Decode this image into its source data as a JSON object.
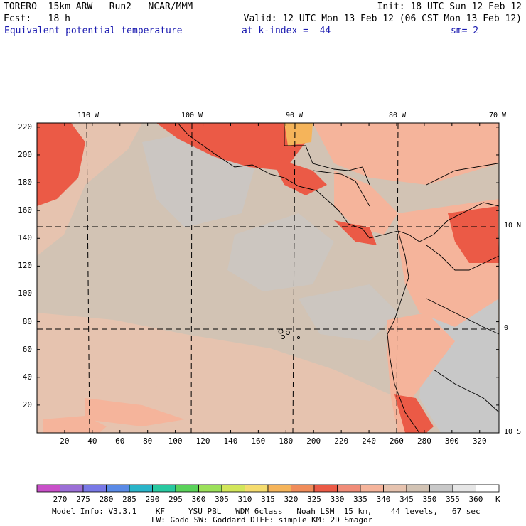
{
  "header": {
    "line1_left": "TORERO  15km ARW   Run2   NCAR/MMM",
    "line1_right": "Init: 18 UTC Sun 12 Feb 12",
    "line2_left": "Fcst:   18 h",
    "line2_right": "Valid: 12 UTC Mon 13 Feb 12 (06 CST Mon 13 Feb 12)",
    "field": "Equivalent potential temperature",
    "level": "at k-index =  44",
    "smooth": "sm= 2"
  },
  "map": {
    "lon_labels": [
      "110 W",
      "100 W",
      "90 W",
      "80 W",
      "70 W"
    ],
    "lat_labels": [
      "10 N",
      "0",
      "10 S"
    ],
    "x_ticks": [
      "20",
      "40",
      "60",
      "80",
      "100",
      "120",
      "140",
      "160",
      "180",
      "200",
      "220",
      "240",
      "260",
      "280",
      "300",
      "320"
    ],
    "y_ticks": [
      "220",
      "200",
      "180",
      "160",
      "140",
      "120",
      "100",
      "80",
      "60",
      "40",
      "20"
    ]
  },
  "colorbar": {
    "unit": "K",
    "labels": [
      "270",
      "275",
      "280",
      "285",
      "290",
      "295",
      "300",
      "305",
      "310",
      "315",
      "320",
      "325",
      "330",
      "335",
      "340",
      "345",
      "350",
      "355",
      "360"
    ],
    "colors": [
      "#c850c8",
      "#9b6fd6",
      "#7878e6",
      "#5a8ae6",
      "#2ab4c8",
      "#28c8a0",
      "#5ad25a",
      "#9be05a",
      "#d2e65a",
      "#f5dc6e",
      "#f5b45a",
      "#f08c5a",
      "#eb5a46",
      "#f08c78",
      "#f5b49b",
      "#e6c3af",
      "#d2c3b4",
      "#c8c8c8",
      "#e6e6e6",
      "#ffffff"
    ]
  },
  "footer": {
    "line1": "Model Info: V3.3.1    KF     YSU PBL   WDM 6class   Noah LSM  15 km,    44 levels,   67 sec",
    "line2": "LW: Godd SW: Goddard DIFF: simple KM: 2D Smagor"
  }
}
